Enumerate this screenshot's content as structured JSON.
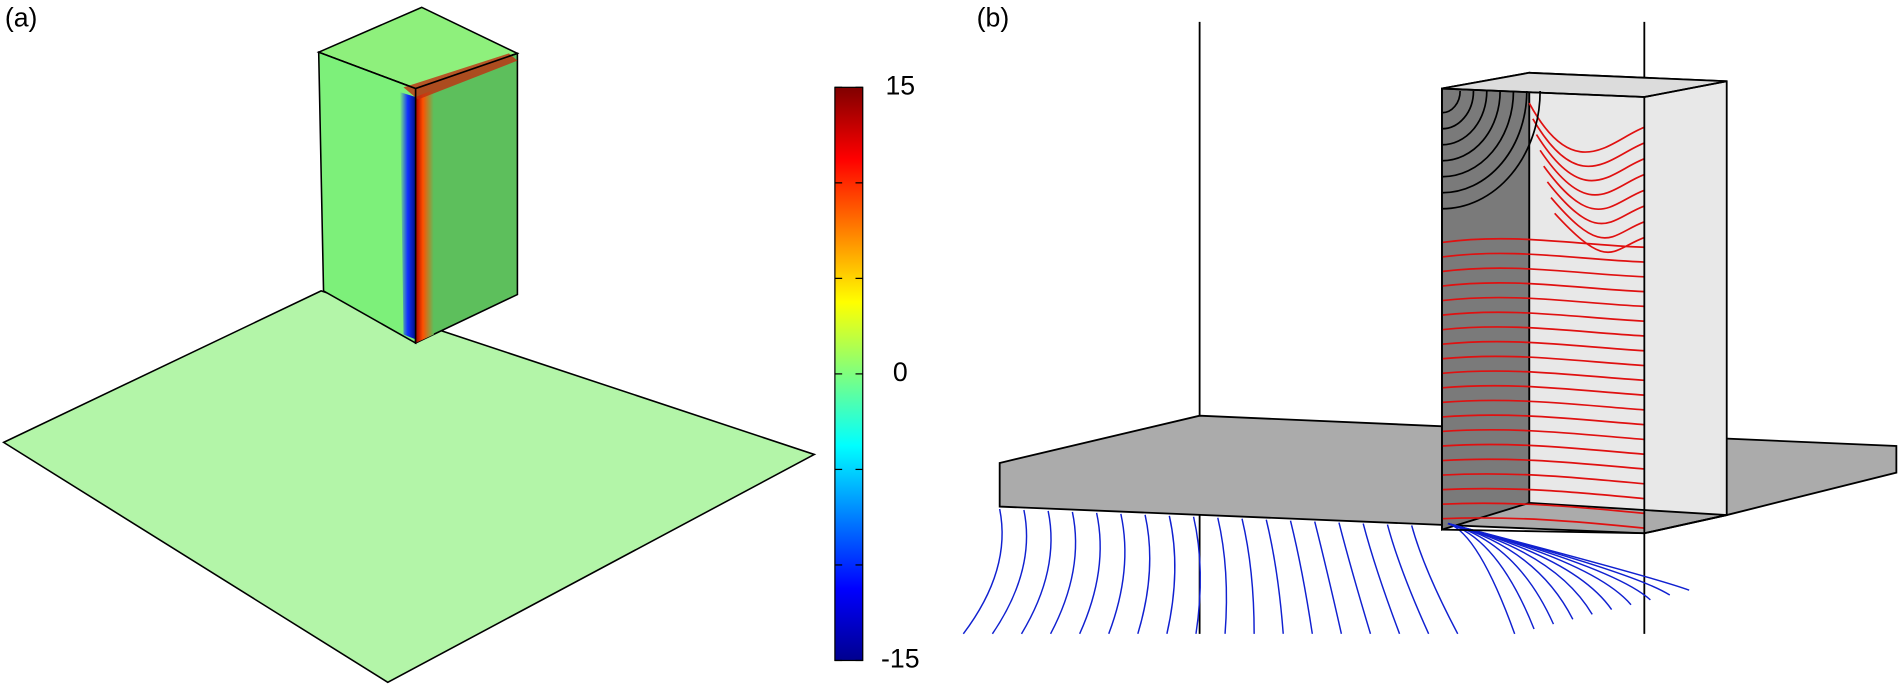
{
  "panels": [
    {
      "label": "(a)"
    },
    {
      "label": "(b)"
    }
  ],
  "colorbar": {
    "lim": [
      -15,
      15
    ],
    "ticks": [
      -15,
      {
        "value": -10,
        "label": null
      },
      {
        "value": -5,
        "label": null
      },
      0,
      {
        "value": 5,
        "label": null
      },
      {
        "value": 10,
        "label": null
      },
      15
    ]
  }
}
